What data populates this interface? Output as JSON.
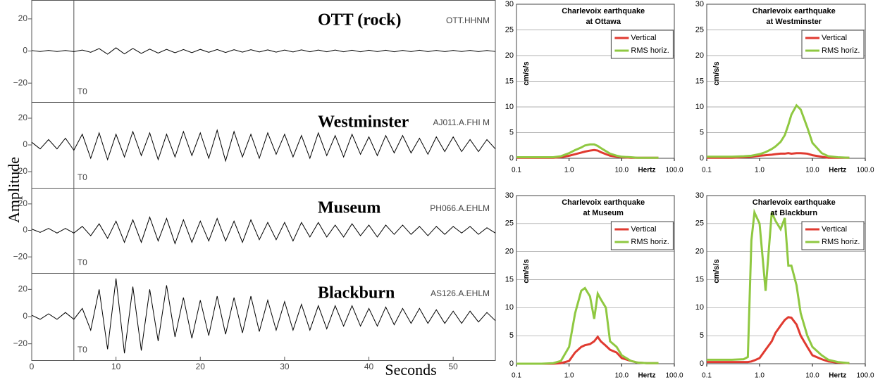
{
  "chart_data": [
    {
      "type": "seismogram",
      "ylabel": "Amplitude",
      "xlabel": "Seconds",
      "marker_label": "T0",
      "marker_x": 5,
      "xlim": [
        0,
        55
      ],
      "xticks": [
        0,
        10,
        20,
        30,
        40,
        50
      ],
      "ylim": [
        -30,
        30
      ],
      "yticks": [
        20,
        0,
        {
          "value": -20,
          "label": "−20"
        }
      ],
      "color": "#000000",
      "x": [
        0,
        1,
        2,
        3,
        4,
        5,
        6,
        7,
        8,
        9,
        10,
        11,
        12,
        13,
        14,
        15,
        16,
        17,
        18,
        19,
        20,
        21,
        22,
        23,
        24,
        25,
        26,
        27,
        28,
        29,
        30,
        31,
        32,
        33,
        34,
        35,
        36,
        37,
        38,
        39,
        40,
        41,
        42,
        43,
        44,
        45,
        46,
        47,
        48,
        49,
        50,
        51,
        52,
        53,
        54,
        55
      ],
      "series": [
        {
          "name": "OTT (rock)",
          "code": "OTT.HHNM",
          "values": [
            0.3,
            -0.3,
            0.4,
            -0.3,
            0.3,
            -0.4,
            0.6,
            -0.8,
            1.5,
            -2,
            2,
            -1.8,
            1.6,
            -1.5,
            1.2,
            -1.3,
            1,
            -1.1,
            0.9,
            -1,
            1,
            -0.8,
            0.9,
            -0.9,
            0.8,
            -0.7,
            0.8,
            -0.6,
            0.7,
            -0.7,
            0.6,
            -0.6,
            0.7,
            -0.5,
            0.6,
            -0.5,
            0.6,
            -0.5,
            0.5,
            -0.5,
            0.5,
            -0.4,
            0.5,
            -0.5,
            0.4,
            -0.4,
            0.5,
            -0.4,
            0.4,
            -0.4,
            0.4,
            -0.3,
            0.4,
            -0.4,
            0.3,
            -0.3
          ]
        },
        {
          "name": "Westminster",
          "code": "AJ011.A.FHI M",
          "values": [
            2,
            -3,
            4,
            -3,
            5,
            -4,
            8,
            -10,
            9,
            -11,
            8,
            -9,
            10,
            -8,
            9,
            -11,
            8,
            -9,
            10,
            -8,
            9,
            -10,
            11,
            -12,
            10,
            -9,
            8,
            -10,
            9,
            -7,
            8,
            -9,
            7,
            -10,
            9,
            -8,
            7,
            -9,
            8,
            -7,
            6,
            -8,
            7,
            -6,
            7,
            -6,
            5,
            -7,
            6,
            -5,
            6,
            -5,
            4,
            -5,
            4,
            -3
          ]
        },
        {
          "name": "Museum",
          "code": "PH066.A.EHLM",
          "values": [
            1,
            -1.5,
            1.5,
            -2,
            1.5,
            -2,
            3,
            -4,
            5,
            -6,
            7,
            -9,
            8,
            -9,
            10,
            -8,
            9,
            -10,
            8,
            -9,
            7,
            -8,
            9,
            -8,
            7,
            -9,
            8,
            -7,
            6,
            -7,
            6,
            -8,
            6,
            -5,
            6,
            -5,
            4,
            -5,
            5,
            -4,
            4,
            -5,
            4,
            -3,
            4,
            -3,
            3,
            -4,
            3,
            -3,
            3,
            -2,
            3,
            -3,
            2,
            -2
          ]
        },
        {
          "name": "Blackburn",
          "code": "AS126.A.EHLM",
          "values": [
            1,
            -2,
            2,
            -2,
            3,
            -2,
            6,
            -10,
            20,
            -24,
            28,
            -27,
            22,
            -25,
            20,
            -18,
            23,
            -15,
            14,
            -16,
            12,
            -14,
            15,
            -13,
            14,
            -12,
            15,
            -11,
            12,
            -10,
            11,
            -10,
            9,
            -10,
            8,
            -9,
            8,
            -7,
            8,
            -7,
            6,
            -7,
            7,
            -6,
            6,
            -5,
            6,
            -5,
            5,
            -5,
            4,
            -5,
            4,
            -4,
            3,
            -3
          ]
        }
      ]
    },
    {
      "type": "line",
      "title": "Charlevoix earthquake",
      "subtitle": "at Ottawa",
      "ylabel": "cm/s/s",
      "xlabel": "Hertz",
      "log_x": true,
      "grid": true,
      "xlim": [
        0.1,
        100
      ],
      "xticks": [
        0.1,
        {
          "value": 1,
          "label": "1.0"
        },
        {
          "value": 10,
          "label": "10.0"
        },
        {
          "value": 100,
          "label": "100.0"
        }
      ],
      "ylim": [
        0,
        30
      ],
      "yticks": [
        0,
        5,
        10,
        15,
        20,
        25,
        30
      ],
      "x": [
        0.1,
        0.2,
        0.3,
        0.5,
        0.7,
        1,
        1.3,
        1.7,
        2,
        2.5,
        3,
        3.5,
        4,
        5,
        6,
        8,
        10,
        15,
        20,
        30,
        50
      ],
      "series": [
        {
          "name": "Vertical",
          "color": "#e03a30",
          "values": [
            0.1,
            0.1,
            0.1,
            0.1,
            0.2,
            0.5,
            0.8,
            1.1,
            1.3,
            1.5,
            1.6,
            1.5,
            1.2,
            0.8,
            0.5,
            0.3,
            0.2,
            0.1,
            0.1,
            0.1,
            0.1
          ]
        },
        {
          "name": "RMS horiz.",
          "color": "#8fc841",
          "values": [
            0.2,
            0.2,
            0.2,
            0.2,
            0.4,
            1,
            1.6,
            2.1,
            2.5,
            2.7,
            2.7,
            2.4,
            2,
            1.4,
            0.9,
            0.5,
            0.3,
            0.2,
            0.1,
            0.1,
            0.1
          ]
        }
      ]
    },
    {
      "type": "line",
      "title": "Charlevoix earthquake",
      "subtitle": "at Westminster",
      "ylabel": "cm/s/s",
      "xlabel": "Hertz",
      "log_x": true,
      "grid": true,
      "xlim": [
        0.1,
        100
      ],
      "xticks": [
        0.1,
        {
          "value": 1,
          "label": "1.0"
        },
        {
          "value": 10,
          "label": "10.0"
        },
        {
          "value": 100,
          "label": "100.0"
        }
      ],
      "ylim": [
        0,
        30
      ],
      "yticks": [
        0,
        5,
        10,
        15,
        20,
        25,
        30
      ],
      "x": [
        0.1,
        0.2,
        0.3,
        0.5,
        0.7,
        1,
        1.3,
        1.7,
        2,
        2.5,
        3,
        3.5,
        4,
        5,
        6,
        8,
        10,
        15,
        20,
        30,
        50
      ],
      "series": [
        {
          "name": "Vertical",
          "color": "#e03a30",
          "values": [
            0.1,
            0.1,
            0.1,
            0.2,
            0.3,
            0.5,
            0.6,
            0.7,
            0.8,
            0.9,
            0.9,
            1,
            0.9,
            1,
            1,
            0.9,
            0.6,
            0.3,
            0.1,
            0.1,
            0.1
          ]
        },
        {
          "name": "RMS horiz.",
          "color": "#8fc841",
          "values": [
            0.3,
            0.3,
            0.3,
            0.4,
            0.5,
            0.8,
            1.2,
            1.8,
            2.3,
            3.2,
            4.5,
            6.5,
            8.5,
            10.3,
            9.5,
            6,
            3,
            1,
            0.4,
            0.2,
            0.1
          ]
        }
      ]
    },
    {
      "type": "line",
      "title": "Charlevoix earthquake",
      "subtitle": "at Museum",
      "ylabel": "cm/s/s",
      "xlabel": "Hertz",
      "log_x": true,
      "grid": true,
      "xlim": [
        0.1,
        100
      ],
      "xticks": [
        0.1,
        {
          "value": 1,
          "label": "1.0"
        },
        {
          "value": 10,
          "label": "10.0"
        },
        {
          "value": 100,
          "label": "100.0"
        }
      ],
      "ylim": [
        0,
        30
      ],
      "yticks": [
        0,
        5,
        10,
        15,
        20,
        25,
        30
      ],
      "x": [
        0.1,
        0.2,
        0.3,
        0.5,
        0.7,
        1,
        1.3,
        1.7,
        2,
        2.5,
        3,
        3.5,
        4,
        5,
        6,
        8,
        10,
        15,
        20,
        30,
        50
      ],
      "series": [
        {
          "name": "Vertical",
          "color": "#e03a30",
          "values": [
            0,
            0,
            0,
            0,
            0.1,
            0.5,
            2,
            3,
            3.3,
            3.5,
            4,
            4.8,
            4,
            3.2,
            2.5,
            2,
            1,
            0.5,
            0.2,
            0.1,
            0.1
          ]
        },
        {
          "name": "RMS horiz.",
          "color": "#8fc841",
          "values": [
            0,
            0,
            0,
            0.1,
            0.5,
            3,
            9,
            13,
            13.5,
            12,
            8,
            12.5,
            11.5,
            10,
            4,
            3,
            1.5,
            0.5,
            0.2,
            0.1,
            0.1
          ]
        }
      ]
    },
    {
      "type": "line",
      "title": "Charlevoix earthquake",
      "subtitle": "at Blackburn",
      "ylabel": "cm/s/s",
      "xlabel": "Hertz",
      "log_x": true,
      "grid": true,
      "xlim": [
        0.1,
        100
      ],
      "xticks": [
        {
          "value": 0.1,
          "label": "0.1"
        },
        {
          "value": 1,
          "label": "1.0"
        },
        {
          "value": 10,
          "label": "10.0"
        },
        {
          "value": 100,
          "label": "100.0"
        }
      ],
      "ylim": [
        0,
        30
      ],
      "yticks": [
        0,
        5,
        10,
        15,
        20,
        25,
        30
      ],
      "x": [
        0.1,
        0.2,
        0.3,
        0.5,
        0.6,
        0.7,
        0.8,
        1,
        1.3,
        1.7,
        2,
        2.5,
        3,
        3.5,
        4,
        5,
        6,
        8,
        10,
        15,
        20,
        30,
        50
      ],
      "series": [
        {
          "name": "Vertical",
          "color": "#e03a30",
          "values": [
            0.3,
            0.3,
            0.3,
            0.3,
            0.3,
            0.4,
            0.6,
            1,
            2.5,
            4,
            5.5,
            6.8,
            7.8,
            8.3,
            8.2,
            7,
            5,
            3,
            1.5,
            0.8,
            0.4,
            0.2,
            0.1
          ]
        },
        {
          "name": "RMS horiz.",
          "color": "#8fc841",
          "values": [
            0.7,
            0.7,
            0.7,
            0.8,
            1.2,
            22,
            27,
            25,
            13,
            27,
            25.5,
            24,
            26,
            17.5,
            17.5,
            14,
            9,
            5,
            3,
            1.5,
            0.7,
            0.3,
            0.1
          ]
        }
      ]
    }
  ]
}
